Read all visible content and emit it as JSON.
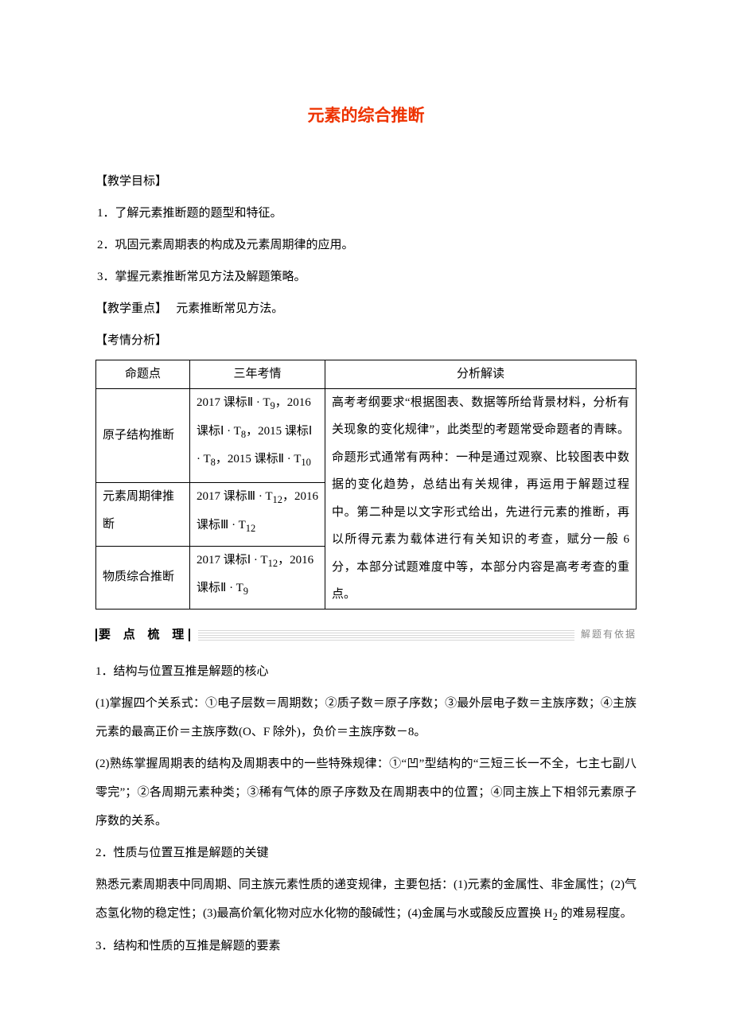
{
  "title": "元素的综合推断",
  "title_color": "#ee3300",
  "sections": {
    "teach_obj_head": "【教学目标】",
    "obj1": "1．了解元素推断题的题型和特征。",
    "obj2": "2．巩固元素周期表的构成及元素周期律的应用。",
    "obj3": "3．掌握元素推断常见方法及解题策略。",
    "teach_focus_head": "【教学重点】",
    "teach_focus_body": "元素推断常见方法。",
    "exam_head": "【考情分析】"
  },
  "table": {
    "headers": [
      "命题点",
      "三年考情",
      "分析解读"
    ],
    "rows": [
      {
        "c1": "原子结构推断",
        "c2": "2017 课标Ⅱ · T<sub>9</sub>，2016 课标Ⅰ · T<sub>8</sub>，2015 课标Ⅰ · T<sub>8</sub>，2015 课标Ⅱ · T<sub>10</sub>"
      },
      {
        "c1": "元素周期律推断",
        "c2": "2017 课标Ⅲ · T<sub>12</sub>，2016 课标Ⅲ · T<sub>12</sub>"
      },
      {
        "c1": "物质综合推断",
        "c2": "2017 课标Ⅰ · T<sub>12</sub>，2016 课标Ⅱ · T<sub>9</sub>"
      }
    ],
    "analysis": "高考考纲要求“根据图表、数据等所给背景材料，分析有关现象的变化规律”，此类型的考题常受命题者的青睐。命题形式通常有两种：一种是通过观察、比较图表中数据的变化趋势，总结出有关规律，再运用于解题过程中。第二种是以文字形式给出，先进行元素的推断，再以所得元素为载体进行有关知识的考查，赋分一般 6 分，本部分试题难度中等，本部分内容是高考考查的重点。"
  },
  "keypoints": {
    "label": "要 点 梳 理",
    "hint": "解题有依据",
    "p1_head": "1．结构与位置互推是解题的核心",
    "p1_1": "(1)掌握四个关系式：①电子层数＝周期数；②质子数＝原子序数；③最外层电子数＝主族序数；④主族元素的最高正价＝主族序数(O、F 除外)，负价＝主族序数－8。",
    "p1_2": "(2)熟练掌握周期表的结构及周期表中的一些特殊规律：①“凹”型结构的“三短三长一不全，七主七副八零完”；②各周期元素种类；③稀有气体的原子序数及在周期表中的位置；④同主族上下相邻元素原子序数的关系。",
    "p2_head": "2．性质与位置互推是解题的关键",
    "p2_body": "熟悉元素周期表中同周期、同主族元素性质的递变规律，主要包括：(1)元素的金属性、非金属性；(2)气态氢化物的稳定性；(3)最高价氧化物对应水化物的酸碱性；(4)金属与水或酸反应置换 H<sub>2</sub> 的难易程度。",
    "p3_head": "3．结构和性质的互推是解题的要素"
  }
}
